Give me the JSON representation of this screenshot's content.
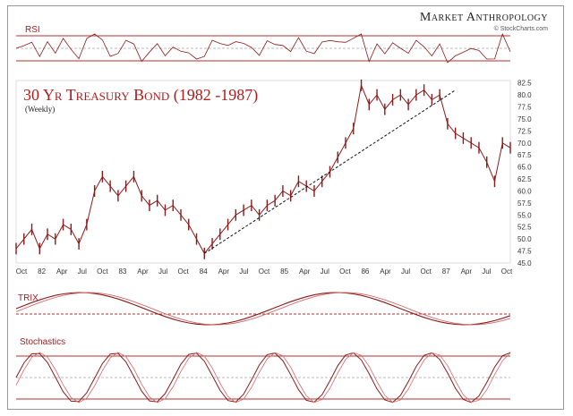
{
  "brand": {
    "title": "Market Anthropology",
    "subtitle": "© StockCharts.com"
  },
  "panels": {
    "rsi_label": "RSI",
    "trix_label": "TRIX",
    "stoch_label": "Stochastics"
  },
  "chart_data": {
    "type": "line",
    "title": "30 Yr Treasury Bond (1982 -1987)",
    "subtitle": "(Weekly)",
    "x_tick_labels": [
      "Oct",
      "82",
      "Apr",
      "Jul",
      "Oct",
      "83",
      "Apr",
      "Jul",
      "Oct",
      "84",
      "Apr",
      "Jul",
      "Oct",
      "85",
      "Apr",
      "Jul",
      "Oct",
      "86",
      "Apr",
      "Jul",
      "Oct",
      "87",
      "Apr",
      "Jul",
      "Oct"
    ],
    "y_tick_labels": [
      "82.5",
      "80.0",
      "77.5",
      "75.0",
      "72.5",
      "70.0",
      "67.5",
      "65.0",
      "62.5",
      "60.0",
      "57.5",
      "55.0",
      "52.5",
      "50.0",
      "47.5",
      "45.0"
    ],
    "ylim": [
      45,
      83
    ],
    "x_range_months": [
      0,
      63
    ],
    "series": [
      {
        "values_x": [
          0,
          1,
          2,
          3,
          4,
          5,
          6,
          7,
          8,
          9,
          10,
          11,
          12,
          13,
          14,
          15,
          16,
          17,
          18,
          19,
          20,
          21,
          22,
          23,
          24,
          25,
          26,
          27,
          28,
          29,
          30,
          31,
          32,
          33,
          34,
          35,
          36,
          37,
          38,
          39,
          40,
          41,
          42,
          43,
          44,
          45,
          46,
          47,
          48,
          49,
          50,
          51,
          52,
          53,
          54,
          55,
          56,
          57,
          58,
          59,
          60,
          61,
          62,
          63
        ],
        "values_y": [
          48,
          50,
          52,
          48,
          51,
          50,
          53,
          52,
          49,
          53,
          60,
          63,
          61,
          59,
          61,
          63,
          59,
          57,
          58,
          56,
          57,
          55,
          53,
          50,
          47,
          49,
          51,
          53,
          55,
          56,
          57,
          55,
          57,
          58,
          60,
          59,
          62,
          61,
          60,
          62,
          64,
          67,
          70,
          73,
          82,
          78,
          80,
          77,
          79,
          80,
          78,
          80,
          81,
          79,
          80,
          74,
          72,
          71,
          70,
          69,
          66,
          62,
          70,
          69
        ]
      }
    ],
    "trendline": {
      "from": [
        24,
        47
      ],
      "to": [
        56,
        81
      ]
    },
    "indicators": {
      "rsi_levels": [
        70,
        50,
        30
      ],
      "trix_zero": 0,
      "stoch_levels": [
        80,
        50,
        20
      ]
    }
  },
  "colors": {
    "accent": "#9b1b1b",
    "price": "#8b1a1a",
    "panel_border": "#b03030",
    "grid": "#bbbbbb"
  }
}
